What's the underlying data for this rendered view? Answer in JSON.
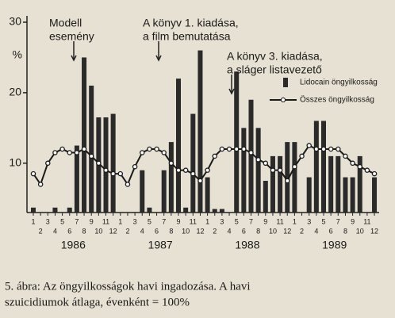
{
  "chart_data": {
    "type": "bar-line",
    "y_label": "%",
    "categories": [
      "1",
      "2",
      "3",
      "4",
      "5",
      "6",
      "7",
      "8",
      "9",
      "10",
      "11",
      "12",
      "1",
      "2",
      "3",
      "4",
      "5",
      "6",
      "7",
      "8",
      "9",
      "10",
      "11",
      "12",
      "1",
      "2",
      "3",
      "4",
      "5",
      "6",
      "7",
      "8",
      "9",
      "10",
      "11",
      "12",
      "1",
      "2",
      "3",
      "4",
      "5",
      "6",
      "7",
      "8",
      "9",
      "10",
      "11",
      "12"
    ],
    "years": [
      "1986",
      "1987",
      "1988",
      "1989"
    ],
    "series": [
      {
        "name": "Lidocain öngyilkosság",
        "color": "#2a2a2a",
        "kind": "bar",
        "values": [
          3.7,
          null,
          null,
          3.7,
          null,
          3.7,
          12.5,
          25,
          21,
          16.5,
          16.5,
          17,
          null,
          null,
          null,
          9,
          3.7,
          null,
          9,
          13,
          22,
          3.7,
          17,
          26,
          8,
          3.5,
          3.5,
          null,
          23,
          15,
          19,
          15,
          7.5,
          11,
          11,
          13,
          13,
          null,
          8,
          16,
          16,
          11,
          11,
          8,
          8,
          11,
          null,
          8
        ]
      },
      {
        "name": "Összes öngyilkosság",
        "color": "#1a1a1a",
        "kind": "line",
        "values": [
          8.5,
          7,
          10,
          11.5,
          12,
          11.5,
          11.5,
          12,
          11,
          10,
          9,
          8.5,
          8.5,
          7,
          9.5,
          11.5,
          12,
          12,
          11.5,
          10,
          9,
          9,
          8.5,
          7.5,
          9,
          11,
          12,
          12,
          12,
          12,
          11.5,
          10.5,
          10,
          9,
          9,
          7.5,
          9.5,
          11,
          12.5,
          12,
          12,
          12,
          12,
          11,
          10,
          9.5,
          9,
          8.5
        ]
      }
    ],
    "ylim": [
      3,
      30
    ],
    "yticks": [
      10,
      20,
      30
    ],
    "annotations": [
      [
        "Modell",
        "esemény"
      ],
      [
        "A könyv 1. kiadása,",
        "a film bemutatása"
      ],
      [
        "A könyv 3. kiadása,",
        "a sláger listavezető"
      ]
    ],
    "caption": [
      "5. ábra: Az öngyilkosságok havi ingadozása. A havi",
      "szuicidiumok átlaga, évenként = 100%"
    ]
  }
}
